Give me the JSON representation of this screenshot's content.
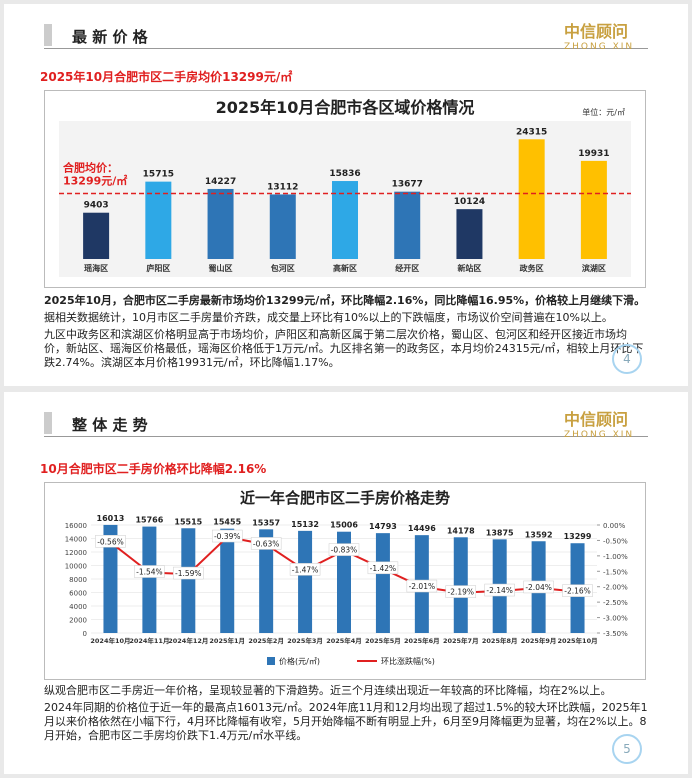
{
  "slides": [
    {
      "header": {
        "title": "最 新 价 格"
      },
      "logo": {
        "name": "中信顾问",
        "pinyin": "ZHONG XIN"
      },
      "subtitle": "2025年10月合肥市区二手房均价13299元/㎡",
      "lead": "2025年10月，合肥市区二手房最新市场均价13299元/㎡，环比降幅2.16%，同比降幅16.95%，价格较上月继续下滑。",
      "paragraphs": [
        "据相关数据统计，10月市区二手房量价齐跌，成交量上环比有10%以上的下跌幅度，市场议价空间普遍在10%以上。",
        "九区中政务区和滨湖区价格明显高于市场均价，庐阳区和高新区属于第二层次价格，蜀山区、包河区和经开区接近市场均价，新站区、瑶海区价格最低，瑶海区价格低于1万元/㎡。九区排名第一的政务区，本月均价24315元/㎡，相较上月环比下跌2.74%。滨湖区本月价格19931元/㎡，环比降幅1.17%。"
      ],
      "page_number": "4"
    },
    {
      "header": {
        "title": "整 体 走 势"
      },
      "logo": {
        "name": "中信顾问",
        "pinyin": "ZHONG XIN"
      },
      "subtitle": "10月合肥市区二手房价格环比降幅2.16%",
      "paragraphs": [
        "纵观合肥市区二手房近一年价格，呈现较显著的下滑趋势。近三个月连续出现近一年较高的环比降幅，均在2%以上。",
        "2024年同期的价格位于近一年的最高点16013元/㎡。2024年底11月和12月均出现了超过1.5%的较大环比跌幅，2025年1月以来价格依然在小幅下行，4月环比降幅有收窄，5月开始降幅不断有明显上升，6月至9月降幅更为显著，均在2%以上。8月开始，合肥市区二手房均价跌下1.4万元/㎡水平线。"
      ],
      "page_number": "5"
    }
  ],
  "chart_data": [
    {
      "type": "bar",
      "title": "2025年10月合肥市各区域价格情况",
      "unit": "单位：元/㎡",
      "categories": [
        "瑶海区",
        "庐阳区",
        "蜀山区",
        "包河区",
        "高新区",
        "经开区",
        "新站区",
        "政务区",
        "滨湖区"
      ],
      "values": [
        9403,
        15715,
        14227,
        13112,
        15836,
        13677,
        10124,
        24315,
        19931
      ],
      "colors": [
        "#1f3864",
        "#2ea8e6",
        "#2e75b6",
        "#2e75b6",
        "#2ea8e6",
        "#2e75b6",
        "#1f3864",
        "#ffc000",
        "#ffc000"
      ],
      "ylim": [
        0,
        26000
      ],
      "reference_line": {
        "value": 13299,
        "color": "#e02020",
        "label": [
          "合肥均价：",
          "13299元/㎡"
        ]
      }
    },
    {
      "type": "bar_line",
      "title": "近一年合肥市区二手房价格走势",
      "categories": [
        "2024年10月",
        "2024年11月",
        "2024年12月",
        "2025年1月",
        "2025年2月",
        "2025年3月",
        "2025年4月",
        "2025年5月",
        "2025年6月",
        "2025年7月",
        "2025年8月",
        "2025年9月",
        "2025年10月"
      ],
      "series": [
        {
          "name": "价格(元/㎡)",
          "color": "#2e75b6",
          "values": [
            16013,
            15766,
            15515,
            15455,
            15357,
            15132,
            15006,
            14793,
            14496,
            14178,
            13875,
            13592,
            13299
          ]
        },
        {
          "name": "环比涨跌幅(%)",
          "color": "#e02020",
          "axis": "y2",
          "values": [
            -0.56,
            -1.54,
            -1.59,
            -0.39,
            -0.63,
            -1.47,
            -0.83,
            -1.42,
            -2.01,
            -2.19,
            -2.14,
            -2.04,
            -2.16
          ],
          "value_labels": [
            "-0.56%",
            "-1.54%",
            "-1.59%",
            "-0.39%",
            "-0.63%",
            "-1.47%",
            "-0.83%",
            "-1.42%",
            "-2.01%",
            "-2.19%",
            "-2.14%",
            "-2.04%",
            "-2.16%"
          ]
        }
      ],
      "ylim": [
        0,
        16000
      ],
      "yticks": [
        0,
        2000,
        4000,
        6000,
        8000,
        10000,
        12000,
        14000,
        16000
      ],
      "y2lim": [
        -3.5,
        0
      ],
      "y2ticks": [
        {
          "value": 0,
          "label": "0.00%"
        },
        {
          "value": -0.5,
          "label": "-0.50%"
        },
        {
          "value": -1,
          "label": "-1.00%"
        },
        {
          "value": -1.5,
          "label": "-1.50%"
        },
        {
          "value": -2,
          "label": "-2.00%"
        },
        {
          "value": -2.5,
          "label": "-2.50%"
        },
        {
          "value": -3,
          "label": "-3.00%"
        },
        {
          "value": -3.5,
          "label": "-3.50%"
        }
      ],
      "legend": "bottom"
    }
  ]
}
